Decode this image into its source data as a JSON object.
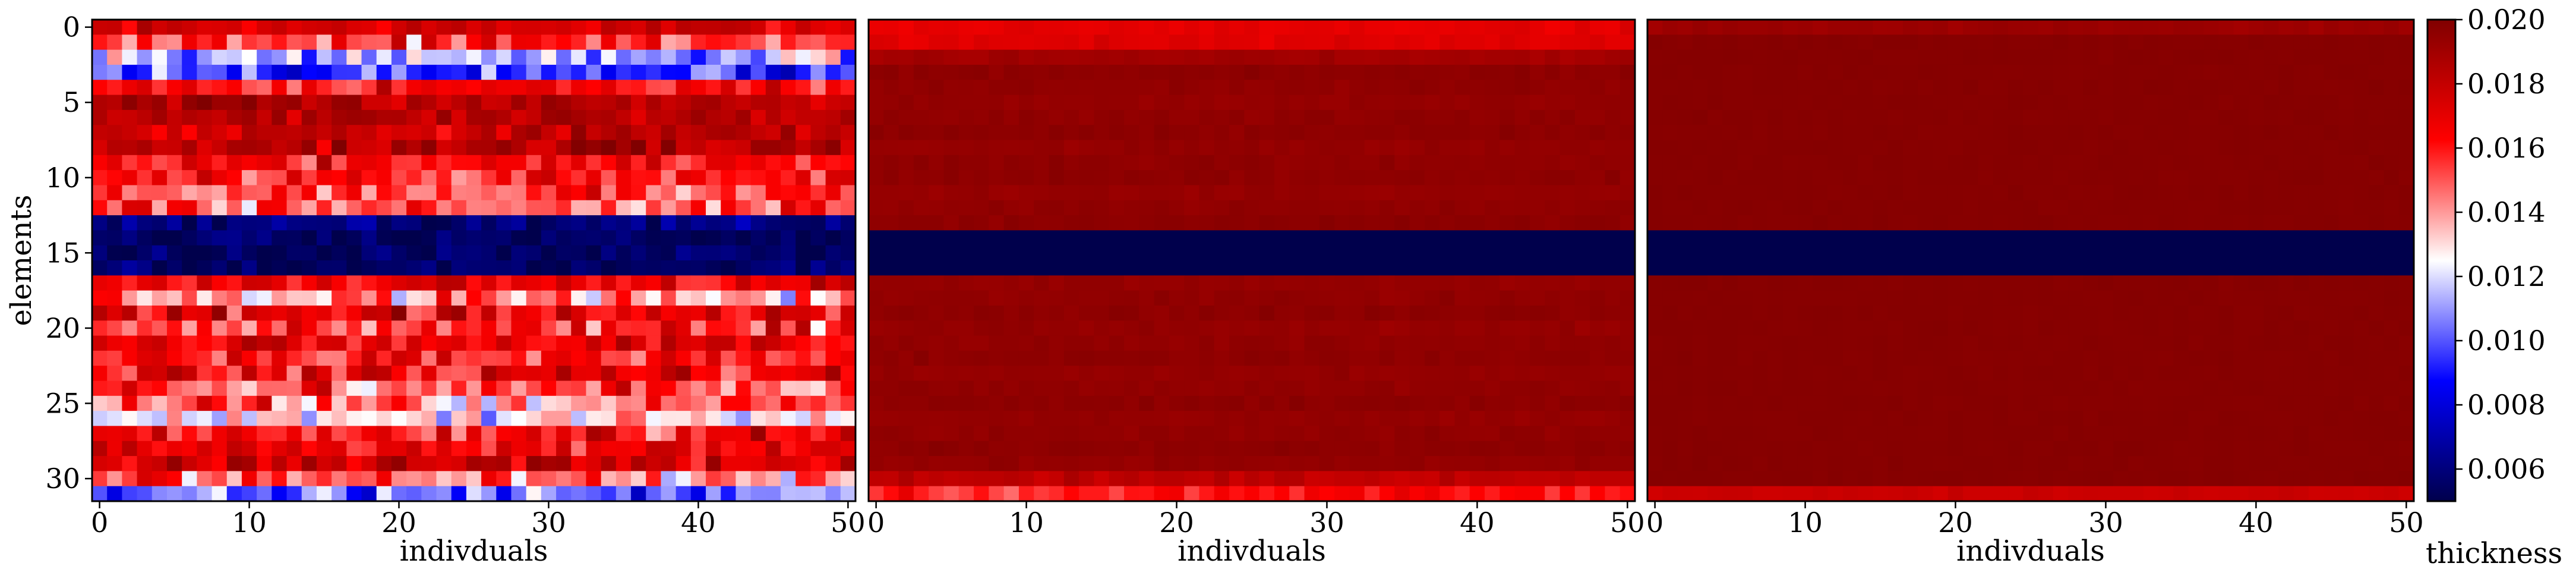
{
  "chart_data": {
    "type": "heatmap",
    "colormap": {
      "name": "seismic",
      "min": 0.005,
      "max": 0.02,
      "stops": [
        "#00004c",
        "#0000ff",
        "#ffffff",
        "#ff0000",
        "#800000"
      ]
    },
    "colorbar": {
      "label": "thickness",
      "ticks": [
        "0.006",
        "0.008",
        "0.010",
        "0.012",
        "0.014",
        "0.016",
        "0.018",
        "0.020"
      ],
      "tick_values": [
        0.006,
        0.008,
        0.01,
        0.012,
        0.014,
        0.016,
        0.018,
        0.02
      ]
    },
    "grid": false,
    "rows": 32,
    "cols": 51,
    "panels": [
      {
        "xlabel": "indivduals",
        "ylabel": "elements",
        "xticks": [
          0,
          10,
          20,
          30,
          40,
          50
        ],
        "yticks": [
          0,
          5,
          10,
          15,
          20,
          25,
          30
        ],
        "row_means": [
          0.0175,
          0.0155,
          0.0115,
          0.0095,
          0.0165,
          0.0185,
          0.0185,
          0.018,
          0.0185,
          0.0165,
          0.016,
          0.0155,
          0.015,
          0.006,
          0.0055,
          0.0055,
          0.0055,
          0.017,
          0.014,
          0.0165,
          0.0155,
          0.017,
          0.016,
          0.0165,
          0.015,
          0.0145,
          0.0125,
          0.016,
          0.017,
          0.0175,
          0.0145,
          0.01
        ],
        "row_spread": [
          0.002,
          0.004,
          0.004,
          0.0035,
          0.003,
          0.002,
          0.002,
          0.0025,
          0.0025,
          0.003,
          0.0035,
          0.0035,
          0.004,
          0.002,
          0.0015,
          0.0015,
          0.0015,
          0.003,
          0.0045,
          0.004,
          0.004,
          0.0035,
          0.004,
          0.004,
          0.0045,
          0.004,
          0.0035,
          0.004,
          0.003,
          0.003,
          0.004,
          0.0035
        ],
        "seed": 7
      },
      {
        "xlabel": "indivduals",
        "ylabel": "",
        "xticks": [
          0,
          10,
          20,
          30,
          40,
          50
        ],
        "yticks": [],
        "row_means": [
          0.017,
          0.0172,
          0.019,
          0.0196,
          0.0195,
          0.0194,
          0.0195,
          0.0196,
          0.0194,
          0.0195,
          0.0196,
          0.0194,
          0.0195,
          0.0196,
          0.005,
          0.005,
          0.005,
          0.0194,
          0.0195,
          0.0196,
          0.0194,
          0.0195,
          0.0196,
          0.0194,
          0.0195,
          0.0196,
          0.0194,
          0.0195,
          0.0196,
          0.0194,
          0.0182,
          0.016
        ],
        "row_spread": [
          0.0006,
          0.0006,
          0.0004,
          0.0003,
          0.0003,
          0.0003,
          0.0003,
          0.0003,
          0.0003,
          0.0003,
          0.0003,
          0.0003,
          0.0003,
          0.0003,
          0.0,
          0.0,
          0.0,
          0.0003,
          0.0003,
          0.0003,
          0.0003,
          0.0003,
          0.0003,
          0.0003,
          0.0003,
          0.0003,
          0.0003,
          0.0003,
          0.0003,
          0.0003,
          0.0008,
          0.0016
        ],
        "seed": 19
      },
      {
        "xlabel": "indivduals",
        "ylabel": "",
        "xticks": [
          0,
          10,
          20,
          30,
          40,
          50
        ],
        "yticks": [],
        "row_means": [
          0.0192,
          0.0198,
          0.0198,
          0.0198,
          0.0198,
          0.0198,
          0.0198,
          0.0198,
          0.0198,
          0.0198,
          0.0198,
          0.0198,
          0.0198,
          0.0198,
          0.005,
          0.005,
          0.005,
          0.0198,
          0.0198,
          0.0198,
          0.0198,
          0.0198,
          0.0198,
          0.0198,
          0.0198,
          0.0198,
          0.0198,
          0.0198,
          0.0198,
          0.0198,
          0.0198,
          0.0178
        ],
        "row_spread": [
          0.0003,
          0.0001,
          0.0001,
          0.0001,
          0.0001,
          0.0001,
          0.0001,
          0.0001,
          0.0001,
          0.0001,
          0.0001,
          0.0001,
          0.0001,
          0.0001,
          0.0,
          0.0,
          0.0,
          0.0001,
          0.0001,
          0.0001,
          0.0001,
          0.0001,
          0.0001,
          0.0001,
          0.0001,
          0.0001,
          0.0001,
          0.0001,
          0.0001,
          0.0001,
          0.0001,
          0.0003
        ],
        "seed": 31
      }
    ]
  }
}
